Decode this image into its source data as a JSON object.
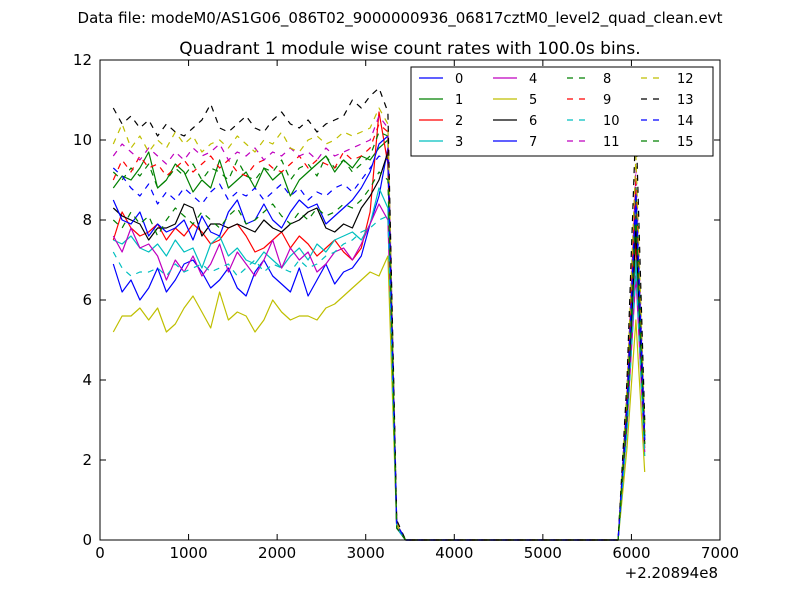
{
  "chart_data": {
    "type": "line",
    "suptitle": "Data file: modeM0/AS1G06_086T02_9000000936_06817cztM0_level2_quad_clean.evt",
    "title": "Quadrant 1 module wise count rates with 100.0s bins.",
    "xlabel": "",
    "ylabel": "",
    "x_offset_label": "+2.20894e8",
    "xlim": [
      0,
      7000
    ],
    "ylim": [
      0,
      12
    ],
    "x_ticks": [
      0,
      1000,
      2000,
      3000,
      4000,
      5000,
      6000,
      7000
    ],
    "y_ticks": [
      0,
      2,
      4,
      6,
      8,
      10,
      12
    ],
    "legend_position": "top-right",
    "legend_columns": 4,
    "grid": false,
    "x": [
      150,
      250,
      350,
      450,
      550,
      650,
      750,
      850,
      950,
      1050,
      1150,
      1250,
      1350,
      1450,
      1550,
      1650,
      1750,
      1850,
      1950,
      2050,
      2150,
      2250,
      2350,
      2450,
      2550,
      2650,
      2750,
      2850,
      2950,
      3050,
      3150,
      3250,
      3350,
      3450,
      3550,
      3650,
      3750,
      3850,
      3950,
      4050,
      4150,
      4250,
      4350,
      4450,
      4550,
      4650,
      4750,
      4850,
      4950,
      5050,
      5150,
      5250,
      5350,
      5450,
      5550,
      5650,
      5750,
      5850,
      5950,
      6050,
      6150
    ],
    "series": [
      {
        "name": "0",
        "color": "#0000ff",
        "dash": "solid",
        "values": [
          6.9,
          6.2,
          6.5,
          6.0,
          6.3,
          6.8,
          6.2,
          6.5,
          6.9,
          7.0,
          6.7,
          6.3,
          6.5,
          6.8,
          6.3,
          6.1,
          6.7,
          7.0,
          6.6,
          6.4,
          6.2,
          6.8,
          6.1,
          6.5,
          6.9,
          6.4,
          6.7,
          6.8,
          7.1,
          7.9,
          8.6,
          9.8,
          0.3,
          0,
          0,
          0,
          0,
          0,
          0,
          0,
          0,
          0,
          0,
          0,
          0,
          0,
          0,
          0,
          0,
          0,
          0,
          0,
          0,
          0,
          0,
          0,
          0,
          0,
          3.2,
          8.0,
          2.5
        ]
      },
      {
        "name": "1",
        "color": "#008000",
        "dash": "solid",
        "values": [
          8.8,
          9.1,
          9.0,
          9.3,
          9.7,
          8.8,
          9.0,
          9.4,
          9.2,
          8.7,
          9.0,
          8.8,
          9.5,
          8.8,
          9.0,
          9.2,
          8.8,
          9.3,
          9.0,
          9.2,
          8.6,
          9.0,
          9.2,
          9.4,
          9.6,
          9.2,
          9.5,
          9.3,
          9.6,
          9.5,
          9.8,
          10.0,
          0.4,
          0,
          0,
          0,
          0,
          0,
          0,
          0,
          0,
          0,
          0,
          0,
          0,
          0,
          0,
          0,
          0,
          0,
          0,
          0,
          0,
          0,
          0,
          0,
          0,
          0,
          3.5,
          8.8,
          2.6
        ]
      },
      {
        "name": "2",
        "color": "#ff0000",
        "dash": "solid",
        "values": [
          7.5,
          8.2,
          7.8,
          7.6,
          7.7,
          7.9,
          7.5,
          7.8,
          7.6,
          7.9,
          7.7,
          7.4,
          7.5,
          7.8,
          7.9,
          7.6,
          7.2,
          7.3,
          7.5,
          7.7,
          7.3,
          7.6,
          7.4,
          7.1,
          7.3,
          7.5,
          7.2,
          7.0,
          7.3,
          8.2,
          10.7,
          9.4,
          0.4,
          0,
          0,
          0,
          0,
          0,
          0,
          0,
          0,
          0,
          0,
          0,
          0,
          0,
          0,
          0,
          0,
          0,
          0,
          0,
          0,
          0,
          0,
          0,
          0,
          0,
          3.0,
          7.5,
          2.3
        ]
      },
      {
        "name": "3",
        "color": "#00bfbf",
        "dash": "solid",
        "values": [
          7.5,
          7.4,
          7.6,
          7.3,
          7.2,
          7.4,
          7.1,
          7.5,
          7.2,
          7.3,
          6.8,
          7.4,
          7.6,
          7.1,
          7.3,
          7.0,
          6.9,
          7.2,
          7.0,
          6.8,
          7.1,
          7.3,
          7.0,
          7.4,
          7.2,
          7.5,
          7.6,
          7.7,
          7.5,
          7.9,
          8.8,
          8.3,
          0.3,
          0,
          0,
          0,
          0,
          0,
          0,
          0,
          0,
          0,
          0,
          0,
          0,
          0,
          0,
          0,
          0,
          0,
          0,
          0,
          0,
          0,
          0,
          0,
          0,
          0,
          2.8,
          7.0,
          2.1
        ]
      },
      {
        "name": "4",
        "color": "#bf00bf",
        "dash": "solid",
        "values": [
          7.6,
          7.2,
          7.8,
          7.3,
          7.4,
          7.1,
          6.5,
          7.0,
          6.7,
          7.1,
          6.6,
          6.9,
          7.4,
          6.7,
          7.2,
          6.9,
          6.6,
          7.0,
          7.5,
          6.8,
          7.3,
          7.0,
          7.2,
          6.7,
          6.9,
          7.2,
          7.3,
          7.0,
          7.4,
          7.9,
          8.4,
          8.0,
          0.3,
          0,
          0,
          0,
          0,
          0,
          0,
          0,
          0,
          0,
          0,
          0,
          0,
          0,
          0,
          0,
          0,
          0,
          0,
          0,
          0,
          0,
          0,
          0,
          0,
          0,
          2.9,
          6.6,
          2.2
        ]
      },
      {
        "name": "5",
        "color": "#bfbf00",
        "dash": "solid",
        "values": [
          5.2,
          5.6,
          5.6,
          5.8,
          5.5,
          5.8,
          5.2,
          5.4,
          5.8,
          6.1,
          5.7,
          5.3,
          6.2,
          5.5,
          5.7,
          5.6,
          5.2,
          5.5,
          6.0,
          5.7,
          5.5,
          5.6,
          5.6,
          5.5,
          5.8,
          5.9,
          6.1,
          6.3,
          6.5,
          6.7,
          6.6,
          7.1,
          0.3,
          0,
          0,
          0,
          0,
          0,
          0,
          0,
          0,
          0,
          0,
          0,
          0,
          0,
          0,
          0,
          0,
          0,
          0,
          0,
          0,
          0,
          0,
          0,
          0,
          0,
          2.3,
          5.5,
          1.7
        ]
      },
      {
        "name": "6",
        "color": "#000000",
        "dash": "solid",
        "values": [
          8.3,
          8.1,
          8.0,
          7.9,
          7.5,
          7.8,
          7.8,
          7.9,
          8.4,
          8.3,
          7.6,
          7.9,
          7.9,
          7.8,
          7.9,
          7.8,
          7.7,
          8.0,
          7.8,
          7.7,
          7.9,
          8.0,
          8.2,
          8.3,
          7.8,
          7.7,
          7.9,
          7.8,
          8.3,
          8.6,
          9.0,
          9.7,
          0.3,
          0,
          0,
          0,
          0,
          0,
          0,
          0,
          0,
          0,
          0,
          0,
          0,
          0,
          0,
          0,
          0,
          0,
          0,
          0,
          0,
          0,
          0,
          0,
          0,
          0,
          3.1,
          7.8,
          2.4
        ]
      },
      {
        "name": "7",
        "color": "#0000ff",
        "dash": "solid",
        "values": [
          8.5,
          8.0,
          7.9,
          8.2,
          7.6,
          7.9,
          7.7,
          7.8,
          8.0,
          7.5,
          8.1,
          7.7,
          7.6,
          8.2,
          8.5,
          7.9,
          8.0,
          8.4,
          8.0,
          7.8,
          8.2,
          8.5,
          8.3,
          8.4,
          7.9,
          8.1,
          8.3,
          8.5,
          8.8,
          9.2,
          9.9,
          10.1,
          0.4,
          0,
          0,
          0,
          0,
          0,
          0,
          0,
          0,
          0,
          0,
          0,
          0,
          0,
          0,
          0,
          0,
          0,
          0,
          0,
          0,
          0,
          0,
          0,
          0,
          0,
          3.3,
          8.6,
          2.5
        ]
      },
      {
        "name": "8",
        "color": "#008000",
        "dash": "dashed",
        "values": [
          9.2,
          9.0,
          9.3,
          9.1,
          9.4,
          8.8,
          9.0,
          9.3,
          9.1,
          9.4,
          9.0,
          9.3,
          9.2,
          9.0,
          9.5,
          9.1,
          9.0,
          9.3,
          9.2,
          9.5,
          9.0,
          9.3,
          9.4,
          9.1,
          9.6,
          9.3,
          9.5,
          9.2,
          9.4,
          9.6,
          10.2,
          10.1,
          0.4,
          0,
          0,
          0,
          0,
          0,
          0,
          0,
          0,
          0,
          0,
          0,
          0,
          0,
          0,
          0,
          0,
          0,
          0,
          0,
          0,
          0,
          0,
          0,
          0,
          0,
          3.4,
          8.9,
          2.6
        ]
      },
      {
        "name": "9",
        "color": "#ff0000",
        "dash": "dashed",
        "values": [
          9.0,
          9.5,
          9.2,
          9.6,
          9.3,
          9.4,
          9.1,
          9.3,
          9.5,
          9.2,
          9.4,
          9.6,
          9.3,
          9.5,
          9.2,
          9.1,
          9.4,
          9.5,
          9.3,
          9.2,
          9.4,
          9.6,
          9.3,
          9.5,
          9.4,
          9.3,
          9.7,
          9.5,
          9.6,
          9.8,
          10.4,
          10.2,
          0.4,
          0,
          0,
          0,
          0,
          0,
          0,
          0,
          0,
          0,
          0,
          0,
          0,
          0,
          0,
          0,
          0,
          0,
          0,
          0,
          0,
          0,
          0,
          0,
          0,
          0,
          3.6,
          9.1,
          2.7
        ]
      },
      {
        "name": "10",
        "color": "#00bfbf",
        "dash": "dashed",
        "values": [
          7.2,
          6.8,
          6.6,
          6.7,
          6.7,
          6.8,
          6.6,
          6.9,
          6.7,
          6.8,
          6.9,
          6.7,
          6.8,
          6.9,
          6.6,
          6.8,
          7.0,
          6.7,
          6.9,
          6.8,
          6.7,
          7.0,
          6.8,
          6.9,
          7.1,
          7.2,
          7.4,
          7.5,
          7.7,
          7.8,
          8.0,
          8.1,
          0.3,
          0,
          0,
          0,
          0,
          0,
          0,
          0,
          0,
          0,
          0,
          0,
          0,
          0,
          0,
          0,
          0,
          0,
          0,
          0,
          0,
          0,
          0,
          0,
          0,
          0,
          2.7,
          6.8,
          2.1
        ]
      },
      {
        "name": "11",
        "color": "#bf00bf",
        "dash": "dashed",
        "values": [
          9.6,
          9.9,
          9.7,
          9.5,
          9.8,
          9.6,
          9.4,
          9.7,
          9.5,
          9.8,
          9.6,
          9.7,
          9.9,
          9.5,
          9.7,
          9.6,
          9.8,
          9.5,
          9.7,
          9.6,
          9.8,
          9.6,
          9.7,
          9.5,
          9.8,
          9.6,
          9.7,
          9.8,
          9.9,
          10.0,
          10.6,
          10.3,
          0.4,
          0,
          0,
          0,
          0,
          0,
          0,
          0,
          0,
          0,
          0,
          0,
          0,
          0,
          0,
          0,
          0,
          0,
          0,
          0,
          0,
          0,
          0,
          0,
          0,
          0,
          3.7,
          9.3,
          2.8
        ]
      },
      {
        "name": "12",
        "color": "#bfbf00",
        "dash": "dashed",
        "values": [
          9.9,
          10.4,
          9.8,
          10.1,
          9.7,
          10.0,
          9.8,
          10.2,
          9.9,
          10.1,
          9.7,
          9.9,
          10.0,
          9.8,
          10.1,
          9.9,
          9.7,
          10.0,
          9.9,
          10.2,
          9.8,
          9.7,
          10.0,
          10.1,
          9.9,
          10.0,
          10.2,
          10.1,
          10.2,
          10.3,
          10.8,
          10.4,
          0.4,
          0,
          0,
          0,
          0,
          0,
          0,
          0,
          0,
          0,
          0,
          0,
          0,
          0,
          0,
          0,
          0,
          0,
          0,
          0,
          0,
          0,
          0,
          0,
          0,
          0,
          3.8,
          9.6,
          2.9
        ]
      },
      {
        "name": "13",
        "color": "#000000",
        "dash": "dashed",
        "values": [
          10.8,
          10.4,
          10.6,
          10.3,
          10.5,
          10.1,
          10.4,
          10.2,
          10.1,
          10.3,
          10.5,
          10.9,
          10.3,
          10.2,
          10.4,
          10.6,
          10.3,
          10.2,
          10.5,
          10.7,
          10.4,
          10.3,
          10.5,
          10.2,
          10.4,
          10.5,
          10.6,
          11.0,
          10.8,
          11.1,
          11.3,
          10.7,
          0.5,
          0,
          0,
          0,
          0,
          0,
          0,
          0,
          0,
          0,
          0,
          0,
          0,
          0,
          0,
          0,
          0,
          0,
          0,
          0,
          0,
          0,
          0,
          0,
          0,
          0,
          4.0,
          10.5,
          3.0
        ]
      },
      {
        "name": "14",
        "color": "#0000ff",
        "dash": "dashed",
        "values": [
          9.3,
          9.1,
          8.8,
          8.6,
          8.9,
          8.4,
          8.7,
          8.5,
          8.8,
          8.6,
          8.4,
          8.7,
          8.9,
          8.5,
          8.7,
          8.6,
          8.8,
          8.5,
          8.7,
          8.9,
          8.6,
          8.8,
          8.5,
          8.7,
          8.6,
          8.8,
          8.9,
          8.7,
          9.0,
          9.3,
          9.6,
          9.5,
          0.4,
          0,
          0,
          0,
          0,
          0,
          0,
          0,
          0,
          0,
          0,
          0,
          0,
          0,
          0,
          0,
          0,
          0,
          0,
          0,
          0,
          0,
          0,
          0,
          0,
          0,
          3.4,
          8.7,
          2.6
        ]
      },
      {
        "name": "15",
        "color": "#008000",
        "dash": "dashed",
        "values": [
          8.0,
          7.8,
          8.2,
          7.9,
          8.1,
          7.6,
          8.0,
          8.3,
          8.1,
          7.9,
          8.2,
          8.0,
          7.8,
          8.1,
          8.3,
          7.9,
          8.0,
          8.2,
          8.4,
          8.1,
          7.9,
          8.2,
          8.0,
          8.3,
          8.1,
          8.2,
          8.4,
          8.3,
          8.5,
          8.8,
          9.2,
          9.0,
          0.3,
          0,
          0,
          0,
          0,
          0,
          0,
          0,
          0,
          0,
          0,
          0,
          0,
          0,
          0,
          0,
          0,
          0,
          0,
          0,
          0,
          0,
          0,
          0,
          0,
          0,
          3.2,
          8.1,
          2.4
        ]
      }
    ]
  }
}
